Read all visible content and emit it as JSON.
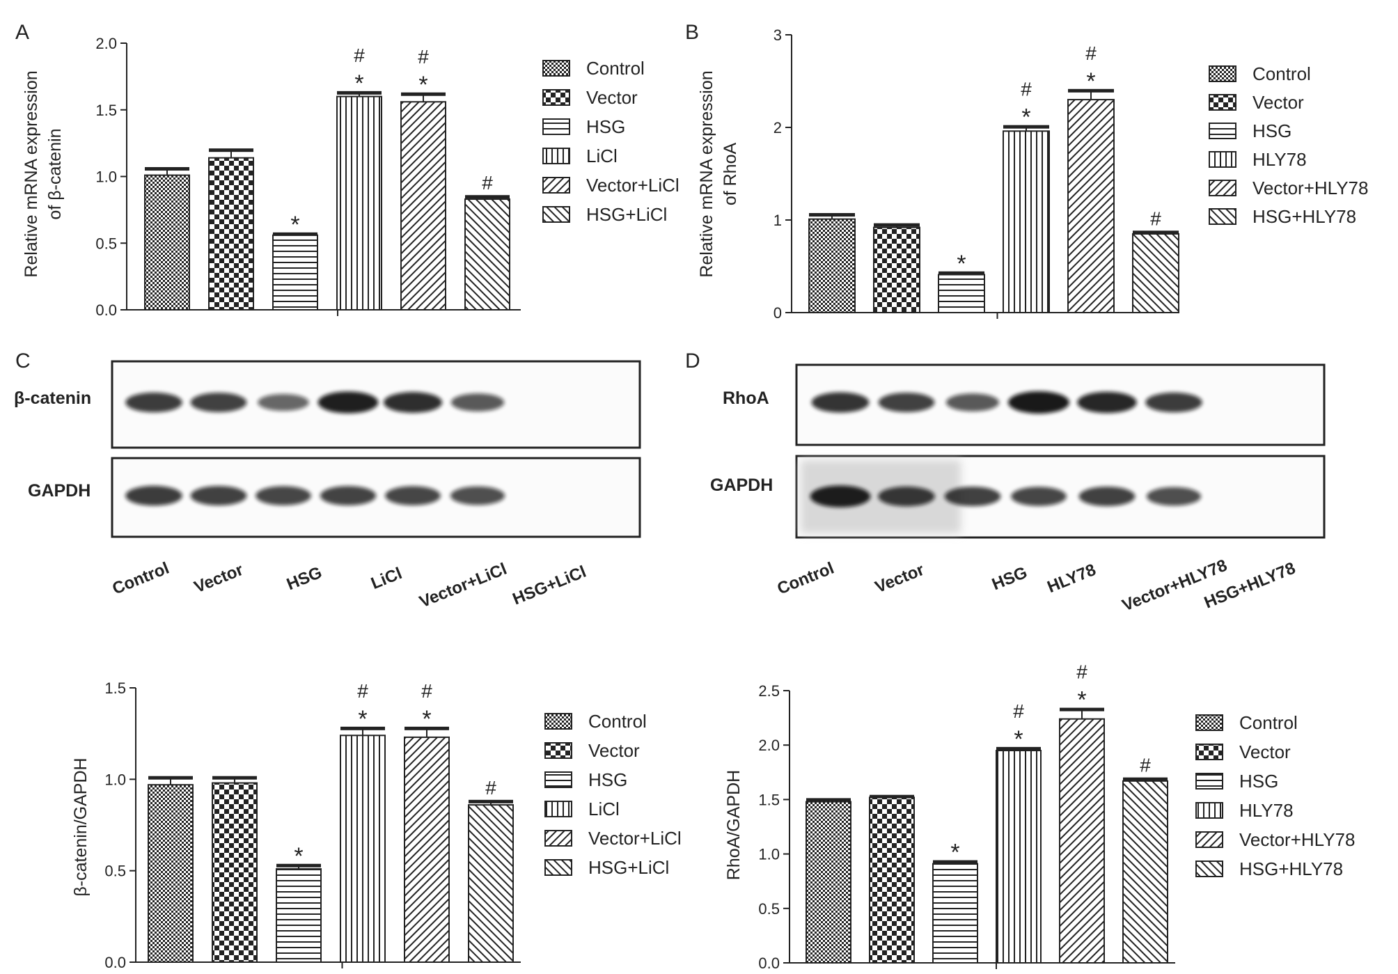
{
  "panels": {
    "A": "A",
    "B": "B",
    "C": "C",
    "D": "D"
  },
  "chart_data": [
    {
      "id": "A",
      "type": "bar",
      "ylabel_lines": [
        "Relative mRNA expression",
        "of β-catenin"
      ],
      "ylim": [
        0,
        2.0
      ],
      "yticks": [
        "0.0",
        "0.5",
        "1.0",
        "1.5",
        "2.0"
      ],
      "categories": [
        "Control",
        "Vector",
        "HSG",
        "LiCl",
        "Vector+LiCl",
        "HSG+LiCl"
      ],
      "values": [
        1.01,
        1.14,
        0.56,
        1.6,
        1.56,
        0.83
      ],
      "errors": [
        0.05,
        0.06,
        0.01,
        0.03,
        0.06,
        0.02
      ],
      "marks": [
        "",
        "",
        "*",
        "#*",
        "#*",
        "#"
      ],
      "legend": [
        "Control",
        "Vector",
        "HSG",
        "LiCl",
        "Vector+LiCl",
        "HSG+LiCl"
      ]
    },
    {
      "id": "B",
      "type": "bar",
      "ylabel_lines": [
        "Relative mRNA expression",
        "of RhoA"
      ],
      "ylim": [
        0,
        3
      ],
      "yticks": [
        "0",
        "1",
        "2",
        "3"
      ],
      "categories": [
        "Control",
        "Vector",
        "HSG",
        "HLY78",
        "Vector+HLY78",
        "HSG+HLY78"
      ],
      "values": [
        1.01,
        0.92,
        0.41,
        1.96,
        2.3,
        0.85
      ],
      "errors": [
        0.05,
        0.03,
        0.02,
        0.05,
        0.1,
        0.02
      ],
      "marks": [
        "",
        "",
        "*",
        "#*",
        "#*",
        "#"
      ],
      "legend": [
        "Control",
        "Vector",
        "HSG",
        "HLY78",
        "Vector+HLY78",
        "HSG+HLY78"
      ]
    },
    {
      "id": "C",
      "type": "bar",
      "ylabel_lines": [
        "β-catenin/GAPDH"
      ],
      "ylim": [
        0,
        1.5
      ],
      "yticks": [
        "0.0",
        "0.5",
        "1.0",
        "1.5"
      ],
      "categories": [
        "Control",
        "Vector",
        "HSG",
        "LiCl",
        "Vector+LiCl",
        "HSG+LiCl"
      ],
      "values": [
        0.97,
        0.98,
        0.51,
        1.24,
        1.23,
        0.86
      ],
      "errors": [
        0.04,
        0.03,
        0.02,
        0.04,
        0.05,
        0.02
      ],
      "marks": [
        "",
        "",
        "*",
        "#*",
        "#*",
        "#"
      ],
      "legend": [
        "Control",
        "Vector",
        "HSG",
        "LiCl",
        "Vector+LiCl",
        "HSG+LiCl"
      ]
    },
    {
      "id": "D",
      "type": "bar",
      "ylabel_lines": [
        "RhoA/GAPDH"
      ],
      "ylim": [
        0,
        2.5
      ],
      "yticks": [
        "0.0",
        "0.5",
        "1.0",
        "1.5",
        "2.0",
        "2.5"
      ],
      "categories": [
        "Control",
        "Vector",
        "HSG",
        "HLY78",
        "Vector+HLY78",
        "HSG+HLY78"
      ],
      "values": [
        1.48,
        1.52,
        0.91,
        1.95,
        2.24,
        1.67
      ],
      "errors": [
        0.02,
        0.01,
        0.02,
        0.02,
        0.09,
        0.02
      ],
      "marks": [
        "",
        "",
        "*",
        "#*",
        "#*",
        "#"
      ],
      "legend": [
        "Control",
        "Vector",
        "HSG",
        "HLY78",
        "Vector+HLY78",
        "HSG+HLY78"
      ]
    }
  ],
  "blots": [
    {
      "id": "C",
      "rows": [
        "β-catenin",
        "GAPDH"
      ],
      "lanes": [
        "Control",
        "Vector",
        "HSG",
        "LiCl",
        "Vector+LiCl",
        "HSG+LiCl"
      ]
    },
    {
      "id": "D",
      "rows": [
        "RhoA",
        "GAPDH"
      ],
      "lanes": [
        "Control",
        "Vector",
        "HSG",
        "HLY78",
        "Vector+HLY78",
        "HSG+HLY78"
      ]
    }
  ]
}
